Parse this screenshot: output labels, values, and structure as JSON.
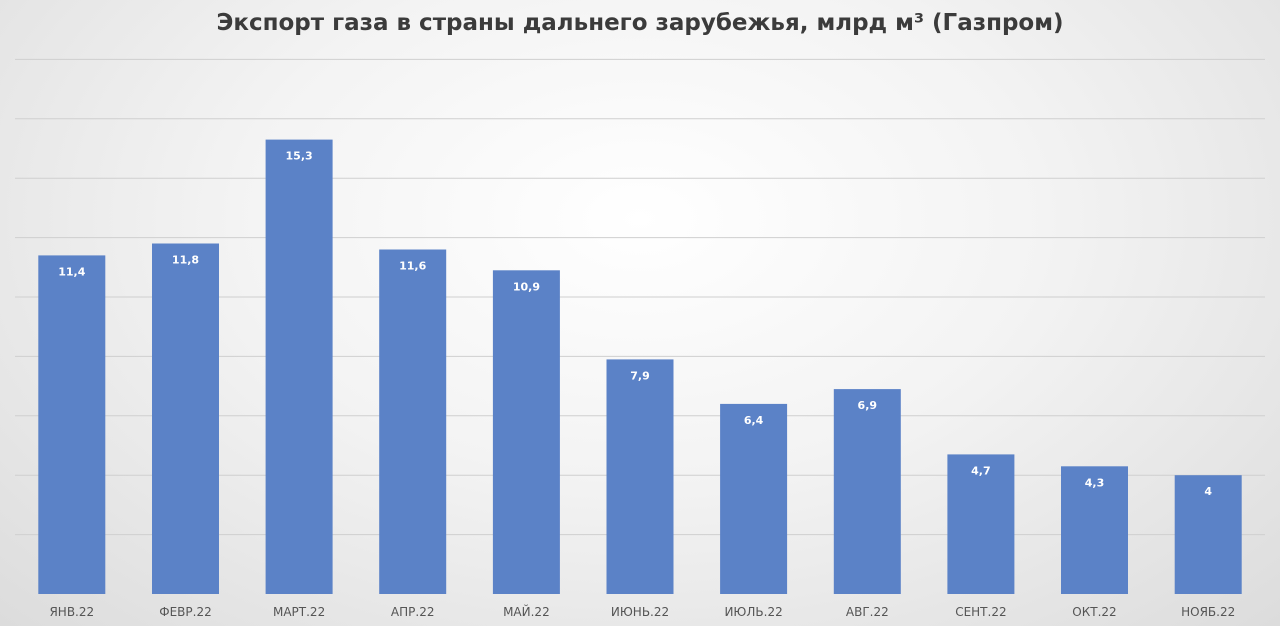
{
  "chart_data": {
    "type": "bar",
    "title": "Экспорт газа в страны дальнего зарубежья, млрд м³ (Газпром)",
    "categories": [
      "ЯНВ.22",
      "ФЕВР.22",
      "МАРТ.22",
      "АПР.22",
      "МАЙ.22",
      "ИЮНЬ.22",
      "ИЮЛЬ.22",
      "АВГ.22",
      "СЕНТ.22",
      "ОКТ.22",
      "НОЯБ.22"
    ],
    "values": [
      11.4,
      11.8,
      15.3,
      11.6,
      10.9,
      7.9,
      6.4,
      6.9,
      4.7,
      4.3,
      4
    ],
    "data_labels": [
      "11,4",
      "11,8",
      "15,3",
      "11,6",
      "10,9",
      "7,9",
      "6,4",
      "6,9",
      "4,7",
      "4,3",
      "4"
    ],
    "xlabel": "",
    "ylabel": "",
    "ylim": [
      0,
      18
    ],
    "gridlines": [
      2,
      4,
      6,
      8,
      10,
      12,
      14,
      16,
      18
    ],
    "grid": true,
    "legend": "none",
    "bar_color": "#5b82c7"
  }
}
